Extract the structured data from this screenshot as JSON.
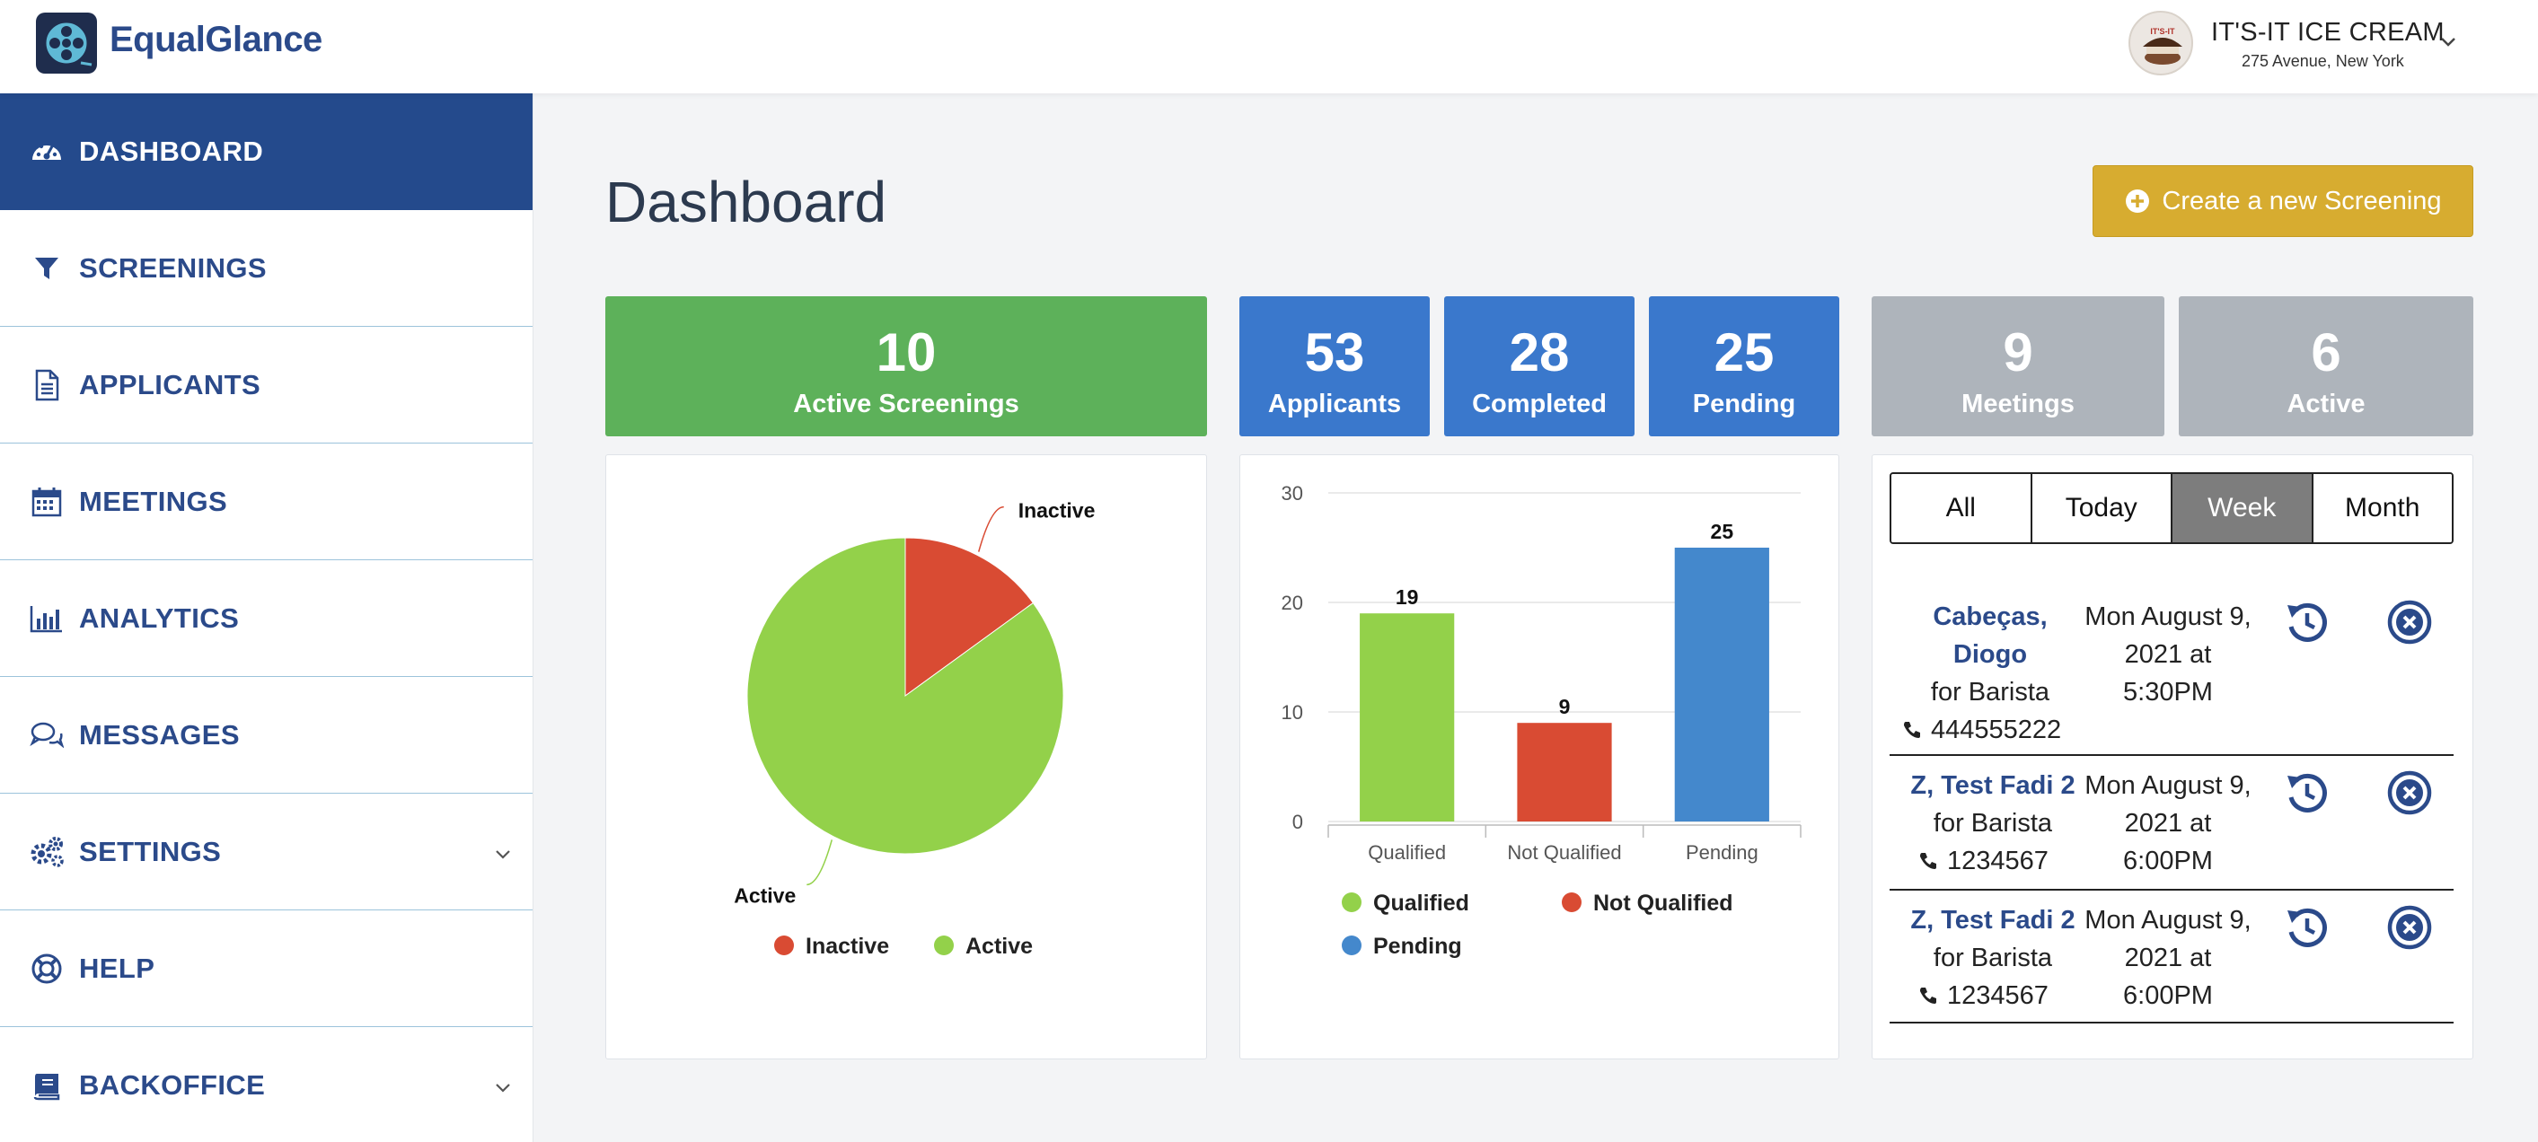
{
  "app": {
    "brand": "EqualGlance"
  },
  "company": {
    "name": "IT'S-IT ICE CREAM",
    "address": "275 Avenue, New York",
    "avatar_text": "IT'S-IT"
  },
  "sidebar": {
    "items": [
      {
        "label": "DASHBOARD",
        "icon": "dashboard-gauge-icon",
        "active": true
      },
      {
        "label": "SCREENINGS",
        "icon": "filter-icon"
      },
      {
        "label": "APPLICANTS",
        "icon": "document-icon"
      },
      {
        "label": "MEETINGS",
        "icon": "calendar-icon"
      },
      {
        "label": "ANALYTICS",
        "icon": "bar-chart-icon"
      },
      {
        "label": "MESSAGES",
        "icon": "chat-bubbles-icon"
      },
      {
        "label": "SETTINGS",
        "icon": "gears-icon",
        "expandable": true
      },
      {
        "label": "HELP",
        "icon": "lifebuoy-icon"
      },
      {
        "label": "BACKOFFICE",
        "icon": "book-icon",
        "expandable": true
      }
    ]
  },
  "main": {
    "title": "Dashboard",
    "create_button": "Create a new Screening",
    "stats": {
      "active_screenings": {
        "value": "10",
        "label": "Active Screenings"
      },
      "applicants": {
        "value": "53",
        "label": "Applicants"
      },
      "completed": {
        "value": "28",
        "label": "Completed"
      },
      "pending": {
        "value": "25",
        "label": "Pending"
      },
      "meetings": {
        "value": "9",
        "label": "Meetings"
      },
      "active": {
        "value": "6",
        "label": "Active"
      }
    },
    "meetings": {
      "tabs": [
        "All",
        "Today",
        "Week",
        "Month"
      ],
      "selected_tab": "Week",
      "rows": [
        {
          "name_line1": "Cabeças,",
          "name_line2": "Diogo",
          "role": "for Barista",
          "phone": "444555222",
          "date_line1": "Mon August 9,",
          "date_line2": "2021 at",
          "date_line3": "5:30PM"
        },
        {
          "name_line1": "Z, Test Fadi 2",
          "role": "for Barista",
          "phone": "1234567",
          "date_line1": "Mon August 9,",
          "date_line2": "2021 at",
          "date_line3": "6:00PM"
        },
        {
          "name_line1": "Z, Test Fadi 2",
          "role": "for Barista",
          "phone": "1234567",
          "date_line1": "Mon August 9,",
          "date_line2": "2021 at",
          "date_line3": "6:00PM"
        }
      ]
    }
  },
  "colors": {
    "primary": "#244a8c",
    "green": "#5db15a",
    "blue": "#3a78cc",
    "grey": "#aeb4bb",
    "gold": "#d7ac30",
    "inactive_red": "#d94b33",
    "active_green": "#93d14a",
    "pending_blue": "#4488cc"
  },
  "chart_data": [
    {
      "type": "pie",
      "labels": [
        "Inactive",
        "Active"
      ],
      "values": [
        15,
        85
      ],
      "colors": [
        "#d94b33",
        "#93d14a"
      ],
      "legend": [
        "Inactive",
        "Active"
      ],
      "legend_position": "bottom"
    },
    {
      "type": "bar",
      "categories": [
        "Qualified",
        "Not Qualified",
        "Pending"
      ],
      "values": [
        19,
        9,
        25
      ],
      "colors": [
        "#93d14a",
        "#d94b33",
        "#4488cc"
      ],
      "yticks": [
        0,
        10,
        20,
        30
      ],
      "ylim": [
        0,
        30
      ],
      "legend": [
        "Qualified",
        "Not Qualified",
        "Pending"
      ],
      "legend_position": "bottom",
      "grid": true
    }
  ]
}
